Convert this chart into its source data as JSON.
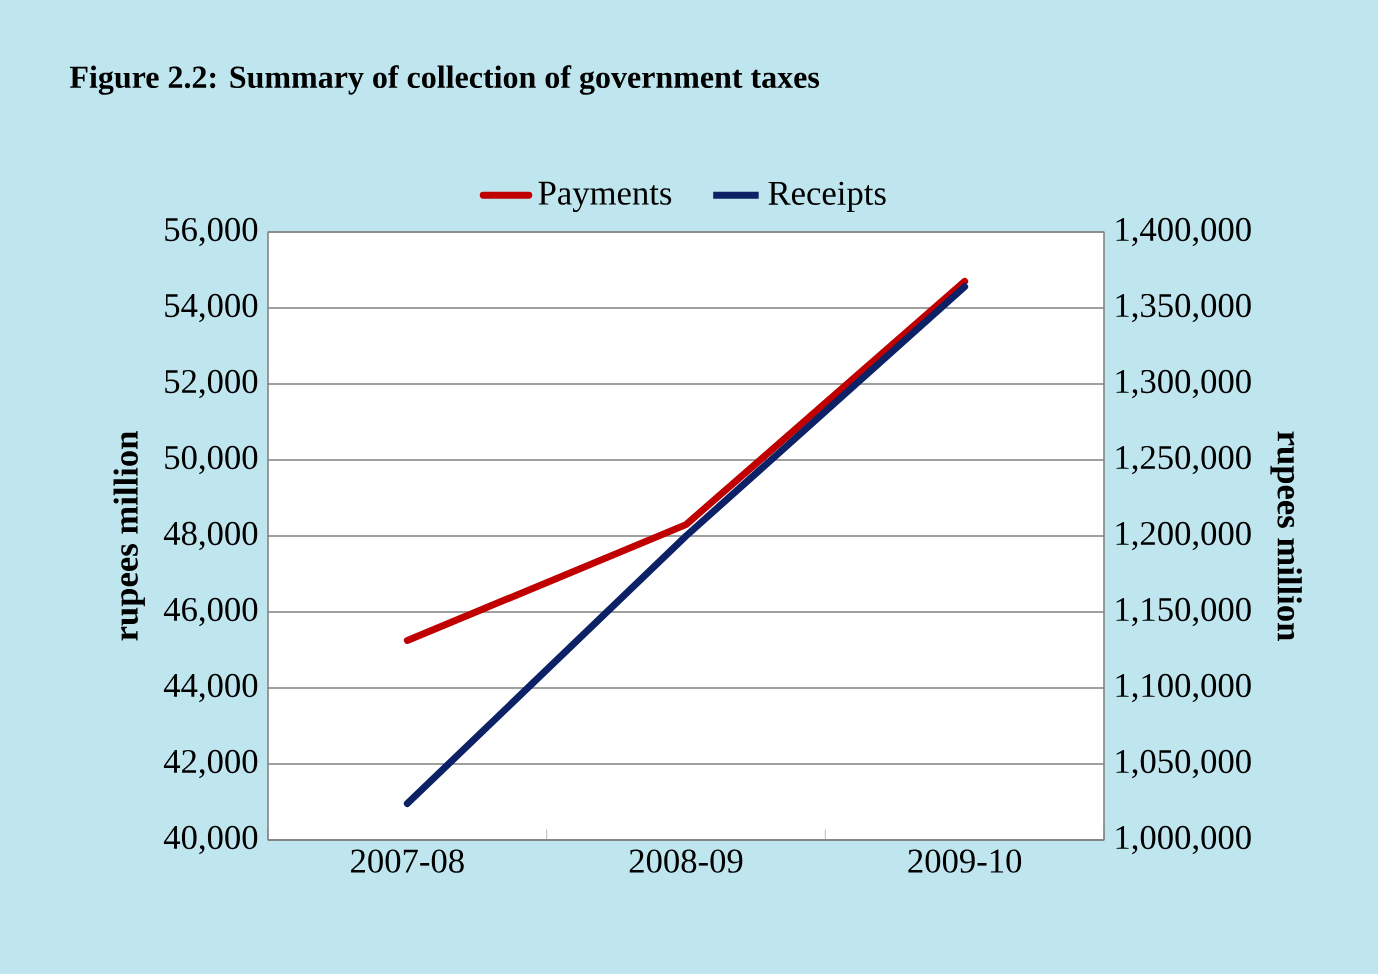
{
  "chart_data": {
    "type": "line",
    "title": "Figure 2.2: Summary of collection of government taxes",
    "categories": [
      "2007-08",
      "2008-09",
      "2009-10"
    ],
    "series": [
      {
        "name": "Payments",
        "color": "#c00000",
        "values": [
          45250,
          48300,
          54700
        ]
      },
      {
        "name": "Receipts",
        "color": "#0d2266",
        "values": [
          1024000,
          1200000,
          1364000
        ],
        "axis": "y2"
      }
    ],
    "ylabel": "rupees million",
    "y2label": "rupees million",
    "ylim": [
      40000,
      56000
    ],
    "yticks": [
      {
        "value": 40000,
        "label": "40,000"
      },
      {
        "value": 42000,
        "label": "42,000"
      },
      {
        "value": 44000,
        "label": "44,000"
      },
      {
        "value": 46000,
        "label": "46,000"
      },
      {
        "value": 48000,
        "label": "48,000"
      },
      {
        "value": 50000,
        "label": "50,000"
      },
      {
        "value": 52000,
        "label": "52,000"
      },
      {
        "value": 54000,
        "label": "54,000"
      },
      {
        "value": 56000,
        "label": "56,000"
      }
    ],
    "y2lim": [
      1000000,
      1400000
    ],
    "y2ticks": [
      {
        "value": 1000000,
        "label": "1,000,000"
      },
      {
        "value": 1050000,
        "label": "1,050,000"
      },
      {
        "value": 1100000,
        "label": "1,100,000"
      },
      {
        "value": 1150000,
        "label": "1,150,000"
      },
      {
        "value": 1200000,
        "label": "1,200,000"
      },
      {
        "value": 1250000,
        "label": "1,250,000"
      },
      {
        "value": 1300000,
        "label": "1,300,000"
      },
      {
        "value": 1350000,
        "label": "1,350,000"
      },
      {
        "value": 1400000,
        "label": "1,400,000"
      }
    ],
    "grid": "y",
    "legend": "top",
    "marker": "none",
    "line_style": "solid"
  }
}
